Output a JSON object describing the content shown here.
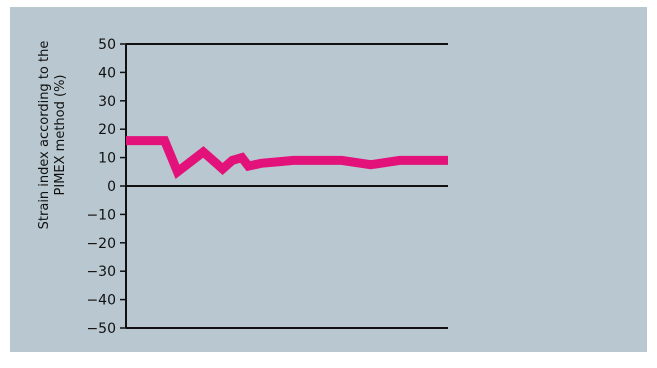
{
  "chart_data": {
    "type": "line",
    "title": "",
    "xlabel": "",
    "ylabel_lines": [
      "Strain index according to the",
      "PIMEX method (%)"
    ],
    "ylim": [
      -50,
      50
    ],
    "yticks": [
      50,
      40,
      30,
      20,
      10,
      0,
      -10,
      -20,
      -30,
      -40,
      -50
    ],
    "ytick_labels": [
      "50",
      "40",
      "30",
      "20",
      "10",
      "0",
      "−10",
      "−20",
      "−30",
      "−40",
      "−50"
    ],
    "grid": false,
    "legend": "none",
    "series": [
      {
        "x": [
          0,
          12,
          16,
          24,
          28,
          30,
          33,
          36,
          38,
          42,
          47,
          52,
          60,
          67,
          76,
          85,
          100
        ],
        "y": [
          16,
          16,
          5,
          12,
          8,
          6,
          9,
          10,
          7,
          8,
          8.5,
          9,
          9,
          9,
          7.5,
          9,
          9
        ]
      }
    ],
    "xlim": [
      0,
      100
    ],
    "colors": {
      "background": "#b9c8d0",
      "series": "#e2127a",
      "axes": "#111111"
    }
  }
}
